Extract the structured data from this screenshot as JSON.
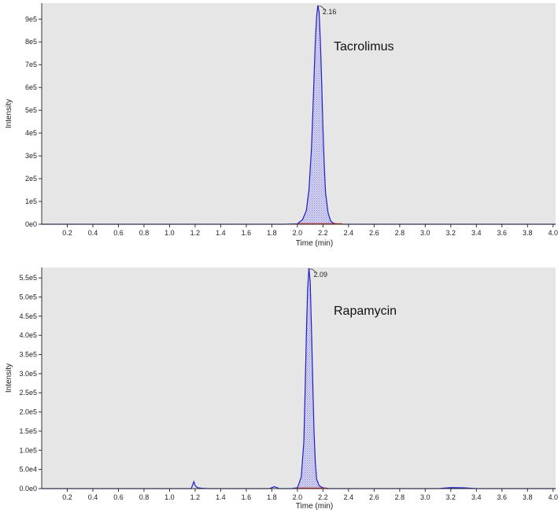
{
  "chart_data": [
    {
      "type": "line",
      "title": "",
      "xlabel": "Time (min)",
      "ylabel": "Intensity",
      "xlim": [
        0,
        4.02
      ],
      "ylim": [
        0,
        970000
      ],
      "x_ticks": [
        "0.2",
        "0.4",
        "0.6",
        "0.8",
        "1.0",
        "1.2",
        "1.4",
        "1.6",
        "1.8",
        "2.0",
        "2.2",
        "2.4",
        "2.6",
        "2.8",
        "3.0",
        "3.2",
        "3.4",
        "3.6",
        "3.8",
        "4.0"
      ],
      "y_ticks": [
        "0e0",
        "1e5",
        "2e5",
        "3e5",
        "4e5",
        "5e5",
        "6e5",
        "7e5",
        "8e5",
        "9e5"
      ],
      "y_tick_values": [
        0,
        100000,
        200000,
        300000,
        400000,
        500000,
        600000,
        700000,
        800000,
        900000
      ],
      "grid": false,
      "compound_label": "Tacrolimus",
      "peak": {
        "retention_time": 2.16,
        "label": "2.16",
        "height": 960000
      },
      "integration_range": [
        2.0,
        2.35
      ],
      "colors": {
        "trace": "#1f1fc8",
        "fill": "#8a8ad8",
        "baseline": "#cc2020",
        "plot_bg": "#e6e6e6"
      },
      "series": [
        {
          "x": [
            0.0,
            0.5,
            1.0,
            1.5,
            1.9,
            2.0,
            2.04,
            2.07,
            2.09,
            2.11,
            2.12,
            2.13,
            2.14,
            2.15,
            2.16,
            2.17,
            2.18,
            2.19,
            2.2,
            2.21,
            2.22,
            2.24,
            2.26,
            2.28,
            2.3,
            2.35,
            2.4,
            3.0,
            3.5,
            4.02
          ],
          "y": [
            0,
            0,
            0,
            0,
            0,
            2000,
            20000,
            60000,
            150000,
            330000,
            480000,
            640000,
            800000,
            910000,
            960000,
            930000,
            800000,
            620000,
            420000,
            260000,
            140000,
            50000,
            15000,
            5000,
            2000,
            0,
            0,
            0,
            0,
            0
          ]
        }
      ]
    },
    {
      "type": "line",
      "title": "",
      "xlabel": "Time (min)",
      "ylabel": "Intensity",
      "xlim": [
        0,
        4.02
      ],
      "ylim": [
        0,
        577000
      ],
      "x_ticks": [
        "0.2",
        "0.4",
        "0.6",
        "0.8",
        "1.0",
        "1.2",
        "1.4",
        "1.6",
        "1.8",
        "2.0",
        "2.2",
        "2.4",
        "2.6",
        "2.8",
        "3.0",
        "3.2",
        "3.4",
        "3.6",
        "3.8",
        "4.0"
      ],
      "y_ticks": [
        "0.0e0",
        "5.0e4",
        "1.0e5",
        "1.5e5",
        "2.0e5",
        "2.5e5",
        "3.0e5",
        "3.5e5",
        "4.0e5",
        "4.5e5",
        "5.0e5",
        "5.5e5"
      ],
      "y_tick_values": [
        0,
        50000,
        100000,
        150000,
        200000,
        250000,
        300000,
        350000,
        400000,
        450000,
        500000,
        550000
      ],
      "grid": false,
      "compound_label": "Rapamycin",
      "peak": {
        "retention_time": 2.09,
        "label": "2.09",
        "height": 575000
      },
      "integration_range": [
        2.0,
        2.22
      ],
      "colors": {
        "trace": "#1f1fc8",
        "fill": "#8a8ad8",
        "baseline": "#cc2020",
        "plot_bg": "#e6e6e6"
      },
      "series": [
        {
          "x": [
            0.0,
            1.0,
            1.17,
            1.19,
            1.2,
            1.22,
            1.25,
            1.3,
            1.6,
            1.78,
            1.82,
            1.86,
            1.95,
            2.0,
            2.03,
            2.05,
            2.06,
            2.07,
            2.08,
            2.09,
            2.1,
            2.11,
            2.12,
            2.13,
            2.14,
            2.15,
            2.17,
            2.2,
            2.25,
            3.1,
            3.2,
            3.3,
            3.4,
            4.02
          ],
          "y": [
            0,
            0,
            0,
            18000,
            8000,
            2000,
            1000,
            0,
            0,
            0,
            5000,
            0,
            0,
            2000,
            30000,
            120000,
            250000,
            400000,
            520000,
            575000,
            540000,
            420000,
            280000,
            150000,
            70000,
            25000,
            8000,
            2000,
            0,
            0,
            2500,
            2000,
            0,
            0
          ]
        }
      ]
    }
  ]
}
